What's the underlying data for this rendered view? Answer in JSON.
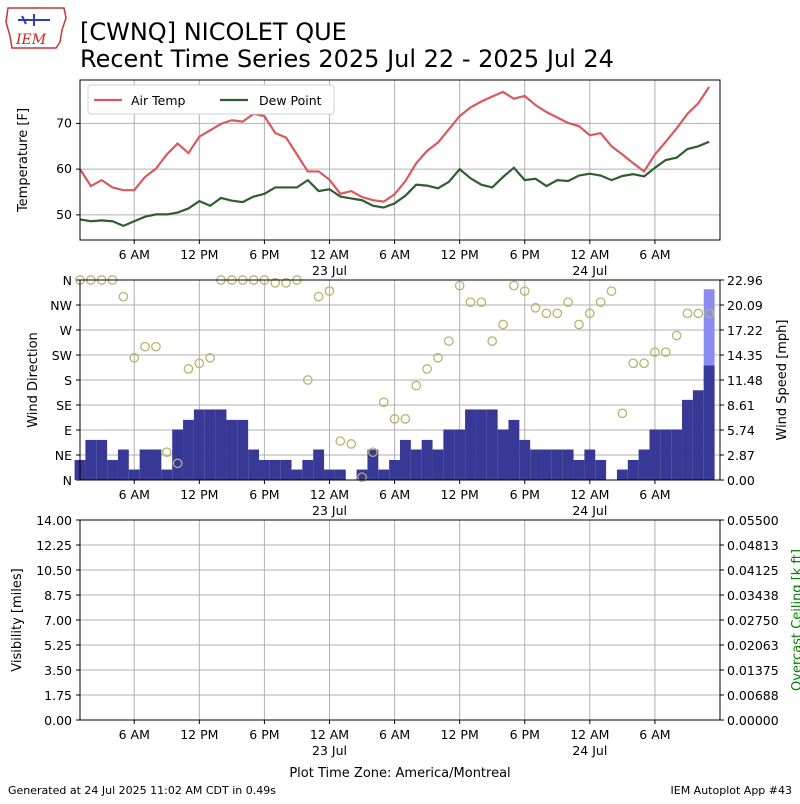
{
  "header": {
    "logo_text": "IEM",
    "title_line1": "[CWNQ] NICOLET  QUE",
    "title_line2": "Recent Time Series 2025 Jul 22 - 2025 Jul 24"
  },
  "footer": {
    "generated": "Generated at 24 Jul 2025 11:02 AM CDT in 0.49s",
    "app": "IEM Autoplot App #43",
    "timezone": "Plot Time Zone: America/Montreal"
  },
  "colors": {
    "air_temp": "#d9595e",
    "dew_point": "#2e5e2e",
    "wind_bar": "#383896",
    "wind_bar_last": "#8c8cf0",
    "wind_dir_marker": "#b5b56e",
    "ceiling_label": "#008000",
    "grid": "#b0b0b0"
  },
  "x_axis": {
    "tick_labels": [
      "6 AM",
      "12 PM",
      "6 PM",
      "12 AM",
      "6 AM",
      "12 PM",
      "6 PM",
      "12 AM",
      "6 AM"
    ],
    "day_labels": [
      {
        "at_tick": 3,
        "text": "23 Jul"
      },
      {
        "at_tick": 7,
        "text": "24 Jul"
      }
    ],
    "start": "2025-07-22 01:00",
    "end": "2025-07-24 12:00"
  },
  "chart_data": [
    {
      "type": "line",
      "ylabel": "Temperature [F]",
      "ylim": [
        44.5,
        79.5
      ],
      "yticks": [
        "50",
        "60",
        "70"
      ],
      "legend": "top-left",
      "grid": true,
      "series": [
        {
          "name": "Air Temp",
          "values": [
            60,
            56.3,
            57.6,
            56,
            55.4,
            55.4,
            58.3,
            60.1,
            63.2,
            65.6,
            63.5,
            67.1,
            68.5,
            69.9,
            70.7,
            70.4,
            72.1,
            71.6,
            67.9,
            66.9,
            63.2,
            59.5,
            59.5,
            57.7,
            54.6,
            55.2,
            53.9,
            53.2,
            52.9,
            54.5,
            57.4,
            61.3,
            64,
            65.8,
            68.7,
            71.6,
            73.5,
            74.8,
            75.9,
            76.9,
            75.4,
            76,
            74,
            72.5,
            71.3,
            70.1,
            69.4,
            67.4,
            67.9,
            65,
            63.2,
            61.3,
            59.5,
            63.2,
            66,
            68.9,
            72.1,
            74.4,
            78
          ]
        },
        {
          "name": "Dew Point",
          "values": [
            49,
            48.6,
            48.8,
            48.6,
            47.6,
            48.6,
            49.6,
            50.1,
            50.1,
            50.5,
            51.4,
            53,
            52,
            53.7,
            53.1,
            52.8,
            54,
            54.6,
            56,
            56,
            56,
            57.6,
            55.2,
            55.6,
            54,
            53.6,
            53.2,
            52,
            51.6,
            52.5,
            54.2,
            56.6,
            56.4,
            55.8,
            57.2,
            60,
            58,
            56.6,
            56,
            58.3,
            60.3,
            57.6,
            57.9,
            56.3,
            57.6,
            57.4,
            58.6,
            59,
            58.6,
            57.6,
            58.5,
            58.9,
            58.4,
            60.3,
            62,
            62.5,
            64.4,
            65,
            66
          ]
        }
      ]
    },
    {
      "type": "bar",
      "ylabel": "Wind Direction",
      "y2label": "Wind Speed [mph]",
      "ylim_dir": [
        0,
        360
      ],
      "dir_ticks": [
        "N",
        "NE",
        "E",
        "SE",
        "S",
        "SW",
        "W",
        "NW",
        "N"
      ],
      "ylim_speed": [
        0,
        22.96
      ],
      "speed_ticks": [
        "0.00",
        "2.87",
        "5.74",
        "8.61",
        "11.48",
        "14.35",
        "17.22",
        "20.09",
        "22.96"
      ],
      "grid": true,
      "series": [
        {
          "name": "Wind Speed",
          "values": [
            2.3,
            4.6,
            4.6,
            2.3,
            3.5,
            1.2,
            3.5,
            3.5,
            1.2,
            5.8,
            6.9,
            8.1,
            8.1,
            8.1,
            6.9,
            6.9,
            3.5,
            2.3,
            2.3,
            2.3,
            1.2,
            2.3,
            3.5,
            1.2,
            1.2,
            0,
            1.2,
            3.5,
            1.2,
            2.3,
            4.6,
            3.5,
            4.6,
            3.5,
            5.8,
            5.8,
            8.1,
            8.1,
            8.1,
            5.8,
            6.9,
            4.6,
            3.5,
            3.5,
            3.5,
            3.5,
            2.3,
            3.5,
            2.3,
            0,
            1.2,
            2.3,
            3.5,
            5.8,
            5.8,
            5.8,
            9.2,
            10.3,
            21.9
          ]
        },
        {
          "name": "Wind Direction",
          "values": [
            360,
            360,
            360,
            360,
            330,
            220,
            240,
            240,
            50,
            30,
            200,
            210,
            220,
            360,
            360,
            360,
            360,
            360,
            355,
            355,
            360,
            180,
            330,
            340,
            70,
            65,
            5,
            50,
            140,
            110,
            110,
            170,
            200,
            220,
            250,
            350,
            320,
            320,
            250,
            280,
            350,
            340,
            310,
            300,
            300,
            320,
            280,
            300,
            320,
            340,
            120,
            210,
            210,
            230,
            230,
            260,
            300,
            300,
            300
          ]
        }
      ]
    },
    {
      "type": "line",
      "ylabel": "Visibility [miles]",
      "y2label": "Overcast Ceiling [k ft]",
      "ylim": [
        0,
        14
      ],
      "yticks": [
        "0.00",
        "1.75",
        "3.50",
        "5.25",
        "7.00",
        "8.75",
        "10.50",
        "12.25",
        "14.00"
      ],
      "y2ticks": [
        "0.00000",
        "0.00688",
        "0.01375",
        "0.02063",
        "0.02750",
        "0.03438",
        "0.04125",
        "0.04813",
        "0.05500"
      ],
      "grid": true,
      "series": []
    }
  ]
}
